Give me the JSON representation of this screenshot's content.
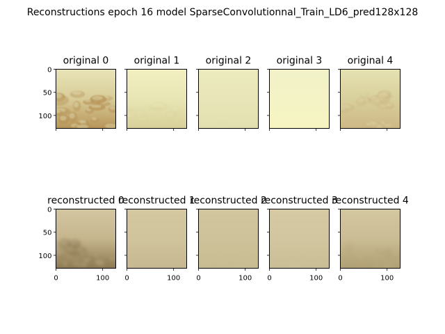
{
  "chart_data": {
    "type": "image_grid",
    "title": "Reconstructions epoch 16 model SparseConvolutionnal_Train_LD6_pred128x128",
    "rows": [
      {
        "panels": [
          {
            "title": "original 0",
            "scene": "rocky-riverbed",
            "colors": {
              "top": "#e8e4b8",
              "mid": "#d8cc98",
              "bottom": "#b8965a"
            }
          },
          {
            "title": "original 1",
            "scene": "hazy-shallows",
            "colors": {
              "top": "#f2f0c2",
              "mid": "#e8e6b4",
              "bottom": "#d8d09a"
            }
          },
          {
            "title": "original 2",
            "scene": "uniform-haze",
            "colors": {
              "top": "#ecebbe",
              "mid": "#e8e6b8",
              "bottom": "#e2dfb0"
            }
          },
          {
            "title": "original 3",
            "scene": "bright-haze",
            "colors": {
              "top": "#f2f1c8",
              "mid": "#f4f3c6",
              "bottom": "#f6f4c0"
            }
          },
          {
            "title": "original 4",
            "scene": "pebbles",
            "colors": {
              "top": "#e6e2b2",
              "mid": "#d8d09c",
              "bottom": "#cdb886"
            }
          }
        ]
      },
      {
        "panels": [
          {
            "title": "reconstructed 0",
            "scene": "blurred-rocks",
            "colors": {
              "top": "#d2c6a0",
              "mid": "#c6b68e",
              "bottom": "#8e7a52"
            }
          },
          {
            "title": "reconstructed 1",
            "scene": "blurred-flat",
            "colors": {
              "top": "#d4c8a0",
              "mid": "#d0c49c",
              "bottom": "#c6b890"
            }
          },
          {
            "title": "reconstructed 2",
            "scene": "blurred-flat",
            "colors": {
              "top": "#d2c6a0",
              "mid": "#cec29a",
              "bottom": "#c8bc92"
            }
          },
          {
            "title": "reconstructed 3",
            "scene": "blurred-flat",
            "colors": {
              "top": "#d6caa4",
              "mid": "#d2c6a0",
              "bottom": "#cabe96"
            }
          },
          {
            "title": "reconstructed 4",
            "scene": "blurred-pebbles",
            "colors": {
              "top": "#d4c8a0",
              "mid": "#cabc94",
              "bottom": "#b0a074"
            }
          }
        ]
      }
    ],
    "image_extent": [
      0,
      128
    ],
    "yticks": [
      "0",
      "50",
      "100"
    ],
    "xticks": [
      "0",
      "100"
    ]
  }
}
